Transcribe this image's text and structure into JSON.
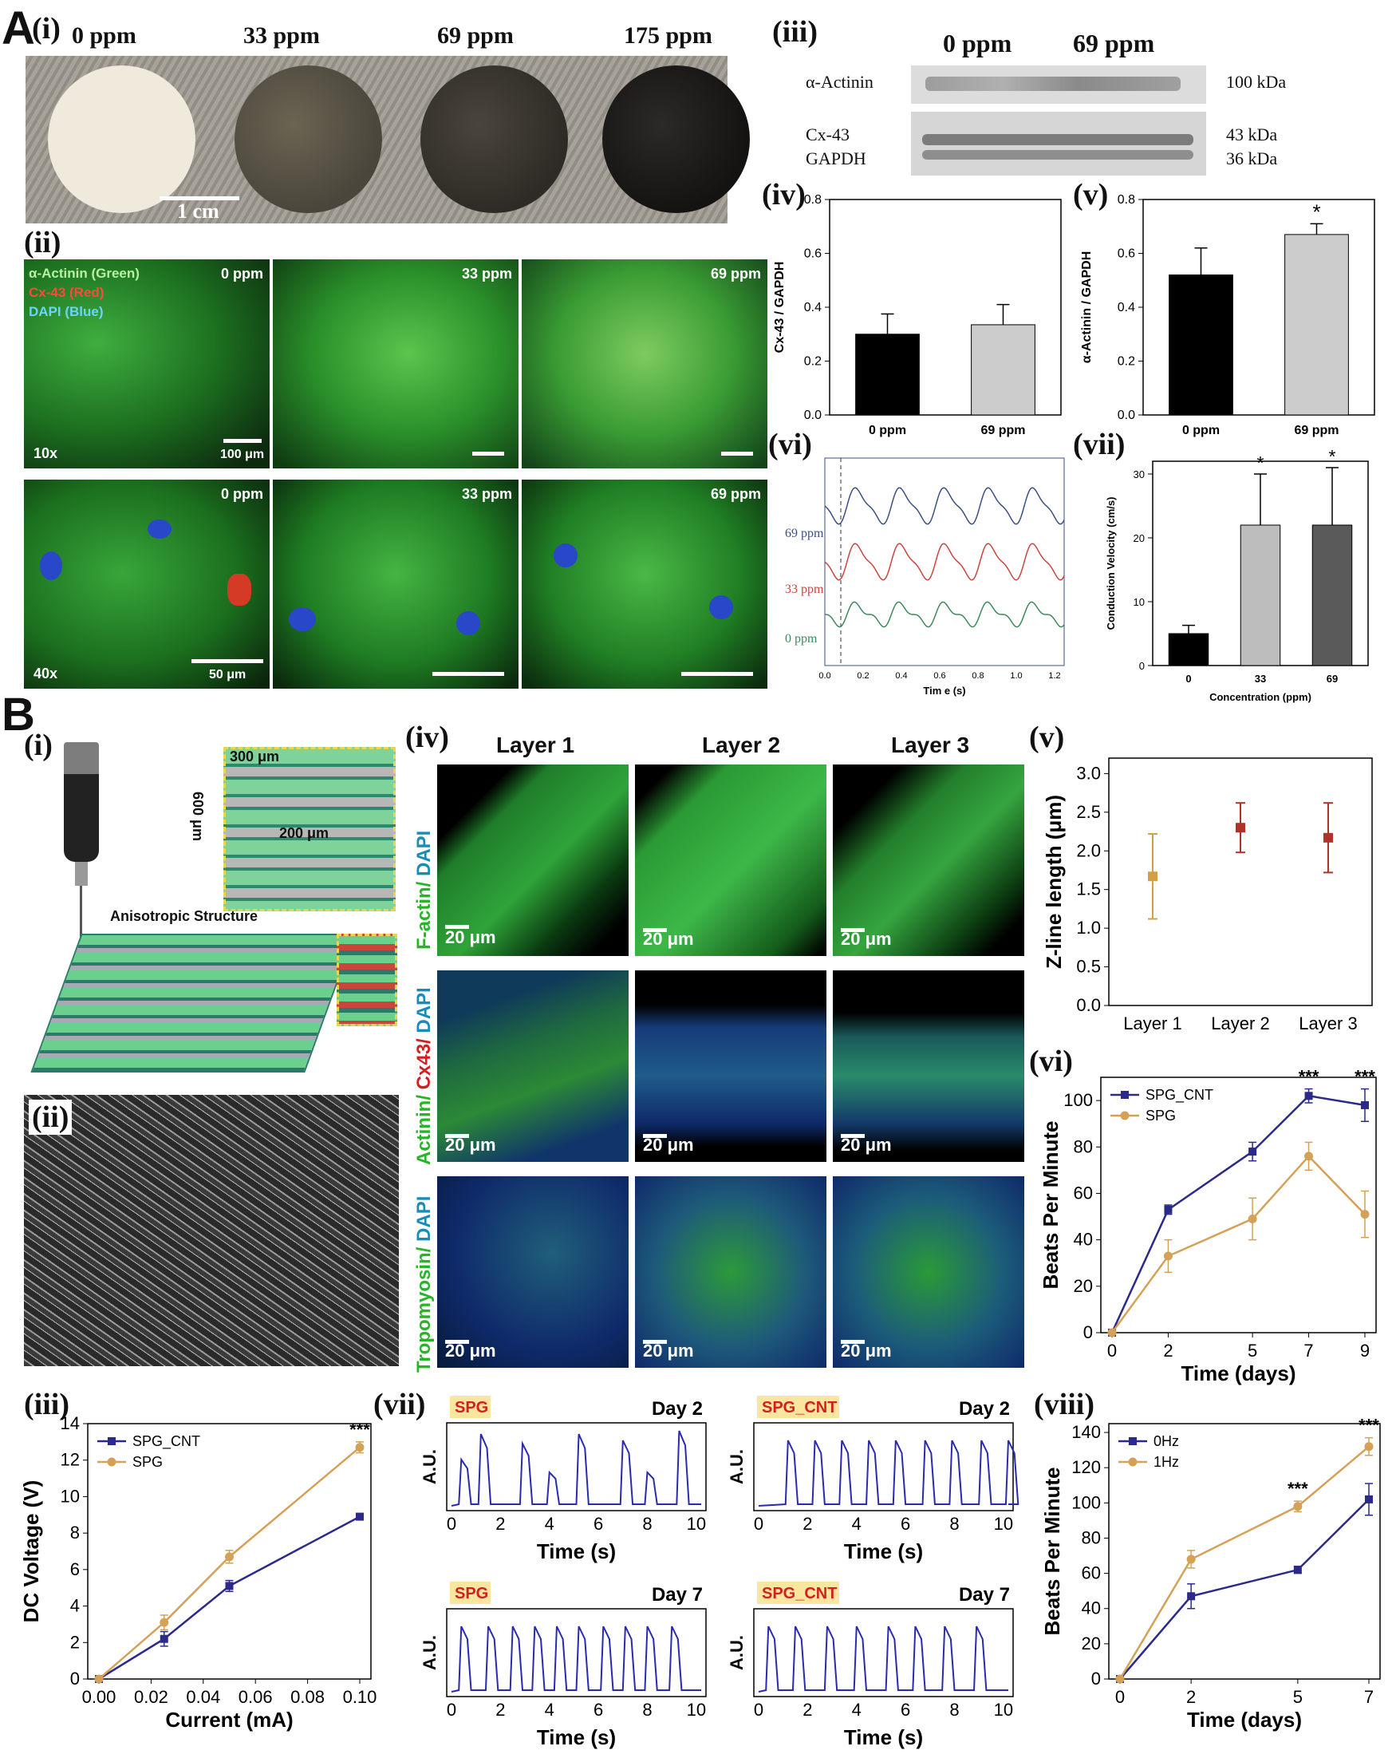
{
  "panelA": {
    "letter": "A",
    "i": {
      "label": "(i)",
      "concs": [
        "0 ppm",
        "33 ppm",
        "69 ppm",
        "175 ppm"
      ],
      "scale": "1 cm"
    },
    "ii": {
      "label": "(ii)",
      "legend": [
        "α-Actinin (Green)",
        "Cx-43 (Red)",
        "DAPI (Blue)"
      ],
      "row_labels": [
        "10x",
        "40x"
      ],
      "concs": [
        "0 ppm",
        "33 ppm",
        "69 ppm"
      ],
      "scale_10x": "100 μm",
      "scale_40x": "50 μm"
    },
    "iii": {
      "label": "(iii)",
      "concs": [
        "0 ppm",
        "69 ppm"
      ],
      "rows": [
        "α-Actinin",
        "Cx-43",
        "GAPDH"
      ],
      "sizes": [
        "100 kDa",
        "43 kDa",
        "36 kDa"
      ]
    },
    "iv_label": "(iv)",
    "v_label": "(v)",
    "vi": {
      "label": "(vi)",
      "series_labels": [
        "69 ppm",
        "33 ppm",
        "0 ppm"
      ],
      "xlabel": "Tim e (s)",
      "xticks": [
        "0.0",
        "0.2",
        "0.4",
        "0.6",
        "0.8",
        "1.0",
        "1.2"
      ]
    },
    "vii_label": "(vii)"
  },
  "panelB": {
    "letter": "B",
    "i": {
      "label": "(i)",
      "dims": [
        "300 μm",
        "600 μm",
        "200 μm"
      ],
      "structure": "Anisotropic Structure"
    },
    "ii_label": "(ii)",
    "iii_label": "(iii)",
    "iv": {
      "label": "(iv)",
      "layers": [
        "Layer 1",
        "Layer 2",
        "Layer 3"
      ],
      "row_stains": [
        [
          {
            "t": "F-actin",
            "c": "#27b427"
          },
          {
            "t": "/ ",
            "c": "#27b427"
          },
          {
            "t": "DAPI",
            "c": "#1a8bb8"
          }
        ],
        [
          {
            "t": "Actinin",
            "c": "#27b427"
          },
          {
            "t": "/ ",
            "c": "#27b427"
          },
          {
            "t": "Cx43",
            "c": "#d22020"
          },
          {
            "t": "/ ",
            "c": "#d22020"
          },
          {
            "t": "DAPI",
            "c": "#1a8bb8"
          }
        ],
        [
          {
            "t": "Tropomyosin",
            "c": "#27b427"
          },
          {
            "t": "/ ",
            "c": "#27b427"
          },
          {
            "t": "DAPI",
            "c": "#1a8bb8"
          }
        ]
      ],
      "scale": "20 μm"
    },
    "v_label": "(v)",
    "vi_label": "(vi)",
    "vii": {
      "label": "(vii)",
      "tags": [
        "SPG",
        "SPG_CNT",
        "SPG",
        "SPG_CNT"
      ],
      "days": [
        "Day 2",
        "Day 2",
        "Day 7",
        "Day 7"
      ],
      "ylabel": "A.U.",
      "xlabel": "Time (s)",
      "xticks": [
        "0",
        "2",
        "4",
        "6",
        "8",
        "10"
      ]
    },
    "viii_label": "(viii)"
  },
  "chart_data": [
    {
      "id": "A-iv",
      "type": "bar",
      "categories": [
        "0 ppm",
        "69 ppm"
      ],
      "values": [
        0.3,
        0.335
      ],
      "errors": [
        0.075,
        0.075
      ],
      "colors": [
        "#000000",
        "#cccccc"
      ],
      "ylabel": "Cx-43 / GAPDH",
      "ylim": [
        0,
        0.8
      ],
      "yticks": [
        "0.0",
        "0.2",
        "0.4",
        "0.6",
        "0.8"
      ]
    },
    {
      "id": "A-v",
      "type": "bar",
      "categories": [
        "0 ppm",
        "69 ppm"
      ],
      "values": [
        0.52,
        0.67
      ],
      "errors": [
        0.1,
        0.04
      ],
      "colors": [
        "#000000",
        "#cccccc"
      ],
      "significance": [
        "",
        "*"
      ],
      "ylabel": "α-Actinin / GAPDH",
      "ylim": [
        0,
        0.8
      ],
      "yticks": [
        "0.0",
        "0.2",
        "0.4",
        "0.6",
        "0.8"
      ]
    },
    {
      "id": "A-vi",
      "type": "line",
      "series": [
        {
          "name": "69 ppm",
          "color": "#3a4f86"
        },
        {
          "name": "33 ppm",
          "color": "#c8463f"
        },
        {
          "name": "0 ppm",
          "color": "#3d8a5c"
        }
      ],
      "xlim": [
        0,
        1.25
      ],
      "xlabel": "Tim e (s)"
    },
    {
      "id": "A-vii",
      "type": "bar",
      "categories": [
        "0",
        "33",
        "69"
      ],
      "values": [
        5,
        22,
        22
      ],
      "errors": [
        1.3,
        8,
        9
      ],
      "colors": [
        "#000000",
        "#bdbdbd",
        "#5a5a5a"
      ],
      "significance": [
        "",
        "*",
        "*"
      ],
      "xlabel": "Concentration (ppm)",
      "ylabel": "Conduction Velocity (cm/s)",
      "ylim": [
        0,
        32
      ],
      "yticks": [
        "0",
        "10",
        "20",
        "30"
      ]
    },
    {
      "id": "B-v",
      "type": "scatter",
      "categories": [
        "Layer 1",
        "Layer 2",
        "Layer 3"
      ],
      "values": [
        1.67,
        2.3,
        2.17
      ],
      "errors": [
        0.55,
        0.32,
        0.45
      ],
      "colors": [
        "#d1a145",
        "#b03228",
        "#b03228"
      ],
      "ylabel": "Z-line length (μm)",
      "ylim": [
        0,
        3.2
      ],
      "yticks": [
        "0.0",
        "0.5",
        "1.0",
        "1.5",
        "2.0",
        "2.5",
        "3.0"
      ]
    },
    {
      "id": "B-vi",
      "type": "line",
      "x": [
        0,
        2,
        5,
        7,
        9
      ],
      "series": [
        {
          "name": "SPG_CNT",
          "values": [
            0,
            53,
            78,
            102,
            98
          ],
          "errors": [
            0,
            2,
            4,
            3,
            7
          ],
          "color": "#2b2a8a"
        },
        {
          "name": "SPG",
          "values": [
            0,
            33,
            49,
            76,
            51
          ],
          "errors": [
            0,
            7,
            9,
            6,
            10
          ],
          "color": "#d4a157"
        }
      ],
      "significance": [
        {
          "x": 7,
          "t": "***"
        },
        {
          "x": 9,
          "t": "***"
        }
      ],
      "xlabel": "Time (days)",
      "ylabel": "Beats Per Minute",
      "ylim": [
        0,
        110
      ],
      "xticks": [
        "0",
        "2",
        "5",
        "7",
        "9"
      ],
      "yticks": [
        "0",
        "20",
        "40",
        "60",
        "80",
        "100"
      ]
    },
    {
      "id": "B-iii",
      "type": "line",
      "x": [
        0,
        0.025,
        0.05,
        0.1
      ],
      "series": [
        {
          "name": "SPG_CNT",
          "values": [
            0,
            2.2,
            5.1,
            8.9
          ],
          "errors": [
            0,
            0.4,
            0.3,
            0.15
          ],
          "color": "#2b2a8a"
        },
        {
          "name": "SPG",
          "values": [
            0,
            3.1,
            6.7,
            12.7
          ],
          "errors": [
            0,
            0.4,
            0.35,
            0.3
          ],
          "color": "#d4a157"
        }
      ],
      "significance": [
        {
          "x": 0.1,
          "t": "***"
        }
      ],
      "xlabel": "Current (mA)",
      "ylabel": "DC Voltage (V)",
      "xlim": [
        0,
        0.1
      ],
      "ylim": [
        0,
        14
      ],
      "xticks": [
        "0.00",
        "0.02",
        "0.04",
        "0.06",
        "0.08",
        "0.10"
      ],
      "yticks": [
        "0",
        "2",
        "4",
        "6",
        "8",
        "10",
        "12",
        "14"
      ]
    },
    {
      "id": "B-viii",
      "type": "line",
      "x": [
        0,
        2,
        5,
        7
      ],
      "series": [
        {
          "name": "0Hz",
          "values": [
            0,
            47,
            62,
            102
          ],
          "errors": [
            0,
            7,
            2,
            9
          ],
          "color": "#2b2a8a"
        },
        {
          "name": "1Hz",
          "values": [
            0,
            68,
            98,
            132
          ],
          "errors": [
            0,
            5,
            3,
            5
          ],
          "color": "#d4a157"
        }
      ],
      "significance": [
        {
          "x": 5,
          "t": "***"
        },
        {
          "x": 7,
          "t": "***"
        }
      ],
      "xlabel": "Time (days)",
      "ylabel": "Beats Per Minute",
      "ylim": [
        0,
        145
      ],
      "xticks": [
        "0",
        "2",
        "5",
        "7"
      ],
      "yticks": [
        "0",
        "20",
        "40",
        "60",
        "80",
        "100",
        "120",
        "140"
      ]
    }
  ]
}
